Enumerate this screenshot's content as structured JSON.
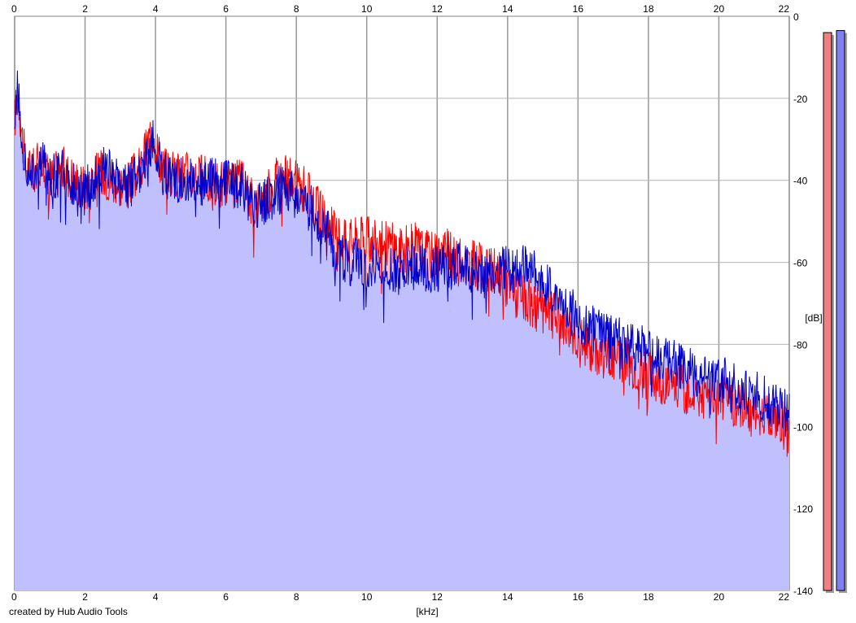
{
  "app": {
    "credit": "created by Hub Audio Tools"
  },
  "chart_data": {
    "type": "area",
    "xlabel": "[kHz]",
    "ylabel": "[dB]",
    "xlim": [
      0,
      22
    ],
    "ylim": [
      -140,
      0
    ],
    "x_ticks": [
      0,
      2,
      4,
      6,
      8,
      10,
      12,
      14,
      16,
      18,
      20,
      22
    ],
    "y_ticks": [
      0,
      -20,
      -40,
      -60,
      -80,
      -100,
      -120,
      -140
    ],
    "grid": true,
    "colors": {
      "left": "#ff0000",
      "right": "#0000cc",
      "fill_left": "#ffc0c0",
      "fill_right": "#c0c0ff",
      "grid": "#999999",
      "meter_left": "#f08080",
      "meter_right": "#8080f0"
    },
    "series": [
      {
        "x": [
          0,
          0.1,
          0.2,
          0.3,
          0.5,
          0.8,
          1,
          1.3,
          1.6,
          2,
          2.4,
          2.8,
          3.2,
          3.6,
          3.9,
          4.2,
          4.6,
          5,
          5.4,
          5.8,
          6.1,
          6.4,
          6.8,
          7.2,
          7.5,
          7.8,
          8.2,
          8.6,
          9,
          9.4,
          9.8,
          10.2,
          10.6,
          11,
          11.4,
          11.8,
          12.2,
          12.6,
          13,
          13.4,
          13.8,
          14.2,
          14.6,
          15,
          15.4,
          15.8,
          16.2,
          16.6,
          17,
          17.4,
          17.8,
          18.2,
          18.6,
          19,
          19.4,
          19.8,
          20.2,
          20.6,
          21,
          21.4,
          21.8,
          22
        ],
        "values": [
          -25,
          -18,
          -28,
          -36,
          -38,
          -35,
          -40,
          -37,
          -39,
          -42,
          -38,
          -40,
          -41,
          -37,
          -27,
          -37,
          -39,
          -38,
          -40,
          -41,
          -42,
          -40,
          -46,
          -43,
          -38,
          -40,
          -42,
          -47,
          -52,
          -55,
          -54,
          -55,
          -55,
          -57,
          -56,
          -58,
          -57,
          -60,
          -60,
          -62,
          -63,
          -68,
          -70,
          -72,
          -73,
          -76,
          -80,
          -82,
          -83,
          -84,
          -87,
          -88,
          -90,
          -91,
          -92,
          -93,
          -93,
          -95,
          -96,
          -97,
          -99,
          -103
        ]
      },
      {
        "x": [
          0,
          0.1,
          0.2,
          0.3,
          0.5,
          0.8,
          1,
          1.3,
          1.6,
          2,
          2.4,
          2.8,
          3.2,
          3.6,
          3.9,
          4.2,
          4.6,
          5,
          5.4,
          5.8,
          6.1,
          6.4,
          6.8,
          7.2,
          7.5,
          7.8,
          8.2,
          8.6,
          9,
          9.4,
          9.8,
          10.2,
          10.6,
          11,
          11.4,
          11.8,
          12.2,
          12.6,
          13,
          13.4,
          13.8,
          14.2,
          14.6,
          15,
          15.4,
          15.8,
          16.2,
          16.6,
          17,
          17.4,
          17.8,
          18.2,
          18.6,
          19,
          19.4,
          19.8,
          20.2,
          20.6,
          21,
          21.4,
          21.8,
          22
        ],
        "values": [
          -22,
          -15,
          -30,
          -37,
          -39,
          -36,
          -39,
          -38,
          -40,
          -43,
          -37,
          -39,
          -42,
          -38,
          -30,
          -38,
          -40,
          -39,
          -41,
          -40,
          -41,
          -41,
          -47,
          -45,
          -42,
          -43,
          -45,
          -49,
          -55,
          -60,
          -60,
          -61,
          -62,
          -62,
          -61,
          -62,
          -61,
          -61,
          -62,
          -63,
          -62,
          -62,
          -60,
          -65,
          -68,
          -72,
          -75,
          -77,
          -78,
          -80,
          -81,
          -82,
          -84,
          -86,
          -87,
          -88,
          -89,
          -91,
          -92,
          -94,
          -96,
          -98
        ]
      }
    ],
    "meters": [
      {
        "name": "left",
        "value_db": -2
      },
      {
        "name": "right",
        "value_db": -1.5
      }
    ]
  }
}
